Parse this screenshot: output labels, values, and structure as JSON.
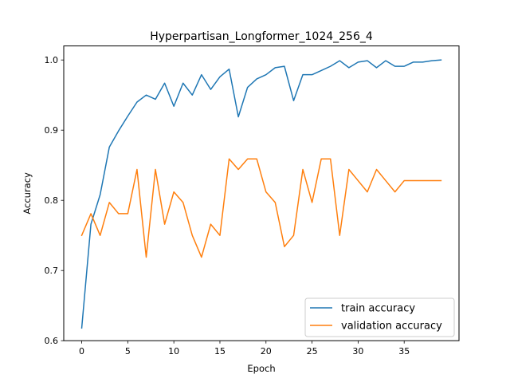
{
  "chart_data": {
    "type": "line",
    "title": "Hyperpartisan_Longformer_1024_256_4",
    "xlabel": "Epoch",
    "ylabel": "Accuracy",
    "xlim": [
      -1.95,
      40.95
    ],
    "ylim": [
      0.6,
      1.02
    ],
    "xticks": [
      0,
      5,
      10,
      15,
      20,
      25,
      30,
      35
    ],
    "yticks": [
      0.6,
      0.7,
      0.8,
      0.9,
      1.0
    ],
    "xtick_labels": [
      "0",
      "5",
      "10",
      "15",
      "20",
      "25",
      "30",
      "35"
    ],
    "ytick_labels": [
      "0.6",
      "0.7",
      "0.8",
      "0.9",
      "1.0"
    ],
    "grid": false,
    "legend_position": "lower-right",
    "x": [
      0,
      1,
      2,
      3,
      4,
      5,
      6,
      7,
      8,
      9,
      10,
      11,
      12,
      13,
      14,
      15,
      16,
      17,
      18,
      19,
      20,
      21,
      22,
      23,
      24,
      25,
      26,
      27,
      28,
      29,
      30,
      31,
      32,
      33,
      34,
      35,
      36,
      37,
      38,
      39
    ],
    "series": [
      {
        "name": "train accuracy",
        "color": "#1f77b4",
        "values": [
          0.618,
          0.766,
          0.808,
          0.876,
          0.899,
          0.92,
          0.94,
          0.95,
          0.944,
          0.967,
          0.934,
          0.967,
          0.95,
          0.979,
          0.958,
          0.976,
          0.987,
          0.919,
          0.961,
          0.973,
          0.979,
          0.989,
          0.991,
          0.942,
          0.979,
          0.979,
          0.985,
          0.991,
          0.999,
          0.989,
          0.997,
          0.999,
          0.989,
          0.999,
          0.991,
          0.991,
          0.997,
          0.997,
          0.999,
          1.0
        ]
      },
      {
        "name": "validation accuracy",
        "color": "#ff7f0e",
        "values": [
          0.75,
          0.781,
          0.75,
          0.797,
          0.781,
          0.781,
          0.844,
          0.719,
          0.844,
          0.766,
          0.812,
          0.797,
          0.75,
          0.719,
          0.766,
          0.75,
          0.859,
          0.844,
          0.859,
          0.859,
          0.812,
          0.797,
          0.734,
          0.75,
          0.844,
          0.797,
          0.859,
          0.859,
          0.75,
          0.844,
          0.828,
          0.812,
          0.844,
          0.828,
          0.812,
          0.828,
          0.828,
          0.828,
          0.828,
          0.828
        ]
      }
    ]
  }
}
